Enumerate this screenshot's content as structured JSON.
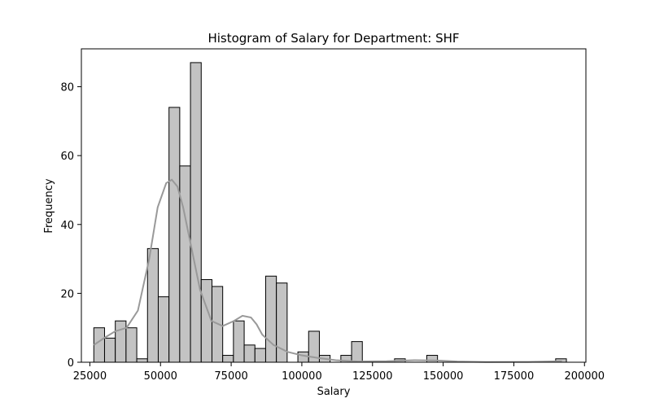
{
  "chart_data": {
    "type": "bar",
    "subtype": "histogram",
    "title": "Histogram of Salary for Department: SHF",
    "xlabel": "Salary",
    "ylabel": "Frequency",
    "xlim": [
      22000,
      200500
    ],
    "ylim": [
      0,
      91
    ],
    "xticks": [
      25000,
      50000,
      75000,
      100000,
      125000,
      150000,
      175000,
      200000
    ],
    "yticks": [
      0,
      20,
      40,
      60,
      80
    ],
    "bin_width": 3800,
    "bar_color": "#c3c3c3",
    "edge_color": "#000000",
    "kde_color": "#999999",
    "grid": false,
    "legend": "none",
    "bins": [
      {
        "x_start": 26400,
        "count": 10
      },
      {
        "x_start": 30200,
        "count": 7
      },
      {
        "x_start": 34000,
        "count": 12
      },
      {
        "x_start": 37800,
        "count": 10
      },
      {
        "x_start": 41600,
        "count": 1
      },
      {
        "x_start": 45400,
        "count": 33
      },
      {
        "x_start": 49200,
        "count": 19
      },
      {
        "x_start": 53000,
        "count": 74
      },
      {
        "x_start": 56800,
        "count": 57
      },
      {
        "x_start": 60600,
        "count": 87
      },
      {
        "x_start": 64400,
        "count": 24
      },
      {
        "x_start": 68200,
        "count": 22
      },
      {
        "x_start": 72000,
        "count": 2
      },
      {
        "x_start": 75800,
        "count": 12
      },
      {
        "x_start": 79600,
        "count": 5
      },
      {
        "x_start": 83400,
        "count": 4
      },
      {
        "x_start": 87200,
        "count": 25
      },
      {
        "x_start": 91000,
        "count": 23
      },
      {
        "x_start": 94800,
        "count": 0
      },
      {
        "x_start": 98600,
        "count": 3
      },
      {
        "x_start": 102400,
        "count": 9
      },
      {
        "x_start": 106200,
        "count": 2
      },
      {
        "x_start": 110000,
        "count": 0
      },
      {
        "x_start": 113800,
        "count": 2
      },
      {
        "x_start": 117600,
        "count": 6
      },
      {
        "x_start": 132800,
        "count": 1
      },
      {
        "x_start": 144200,
        "count": 2
      },
      {
        "x_start": 189800,
        "count": 1
      }
    ],
    "kde": {
      "x": [
        26400,
        30000,
        34000,
        38000,
        42000,
        46000,
        49000,
        52000,
        54000,
        56000,
        58000,
        61000,
        64000,
        68000,
        72000,
        76000,
        79000,
        82000,
        84000,
        86000,
        90000,
        95000,
        100000,
        106000,
        112000,
        120000,
        130000,
        140000,
        148000,
        155000,
        165000,
        180000,
        192000
      ],
      "y": [
        5,
        7,
        9,
        10,
        15,
        30,
        45,
        52,
        53,
        51,
        45,
        33,
        21,
        12,
        10.5,
        12,
        13.5,
        13,
        11,
        8,
        5,
        3,
        2,
        1.2,
        0.6,
        0.2,
        0.3,
        0.6,
        0.5,
        0.2,
        0.05,
        0.1,
        0.3
      ]
    }
  }
}
